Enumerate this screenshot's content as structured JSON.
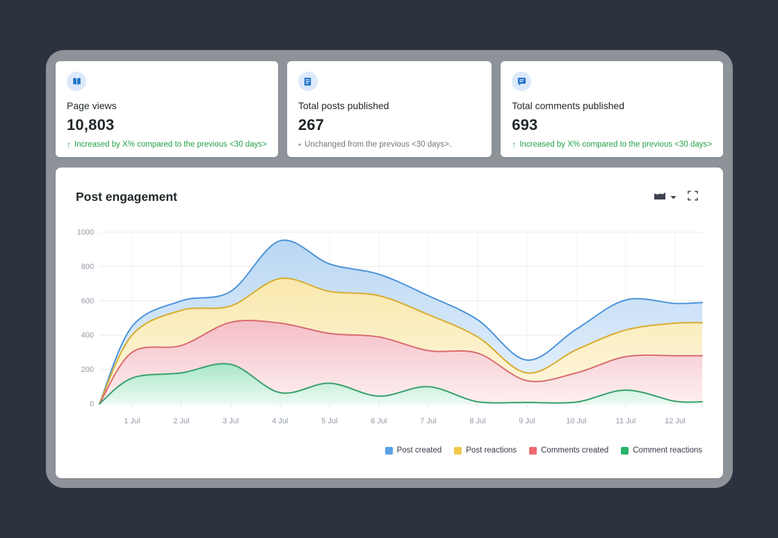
{
  "stat_cards": [
    {
      "icon": "book-icon",
      "title": "Page views",
      "value": "10,803",
      "trend": "up",
      "trend_glyph": "↑",
      "trend_text": "Increased by X% compared to the previous <30 days>"
    },
    {
      "icon": "document-icon",
      "title": "Total posts published",
      "value": "267",
      "trend": "neutral",
      "trend_glyph": "●",
      "trend_text": "Unchanged from the previous <30 days>."
    },
    {
      "icon": "chat-icon",
      "title": "Total comments published",
      "value": "693",
      "trend": "up",
      "trend_glyph": "↑",
      "trend_text": "Increased by X% compared to the previous <30 days>"
    }
  ],
  "chart": {
    "title": "Post engagement",
    "controls": {
      "type_selector_icon": "area-chart-icon",
      "type_selector_caret": "caret-down-icon",
      "expand_icon": "maximize-icon"
    }
  },
  "chart_data": {
    "type": "area",
    "stacked": false,
    "title": "Post engagement",
    "x_ticks": [
      "1 Jul",
      "2 Jul",
      "3 Jul",
      "4 Jul",
      "5 Jul",
      "6 Jul",
      "7 Jul",
      "8 Jul",
      "9 Jul",
      "10 Jul",
      "11 Jul",
      "12 Jul"
    ],
    "x": [
      0.34,
      1,
      2,
      3,
      4,
      5,
      6,
      7,
      8,
      9,
      10,
      11,
      12,
      12.55
    ],
    "ylim": [
      0,
      1000
    ],
    "y_ticks": [
      0,
      200,
      400,
      600,
      800,
      1000
    ],
    "grid": "horizontal",
    "legend_position": "bottom-right",
    "series": [
      {
        "name": "Post created",
        "stroke": "#4b93da",
        "swatch": "#57a1e5",
        "fill_top": "#b9d7f3",
        "fill_bottom": "#eaf3fc",
        "values": [
          0,
          450,
          600,
          655,
          950,
          815,
          755,
          630,
          490,
          255,
          435,
          605,
          585,
          590
        ]
      },
      {
        "name": "Post reactions",
        "stroke": "#d8ab2d",
        "swatch": "#f2c94c",
        "fill_top": "#fae8ac",
        "fill_bottom": "#fdf7e2",
        "values": [
          0,
          400,
          545,
          570,
          730,
          655,
          630,
          520,
          390,
          180,
          315,
          430,
          470,
          472
        ]
      },
      {
        "name": "Comments created",
        "stroke": "#d96a70",
        "swatch": "#ee6a6e",
        "fill_top": "#f5bec6",
        "fill_bottom": "#fdf0f1",
        "values": [
          0,
          300,
          340,
          475,
          470,
          410,
          390,
          310,
          295,
          135,
          180,
          275,
          280,
          280
        ]
      },
      {
        "name": "Comment reactions",
        "stroke": "#36a06b",
        "swatch": "#27b368",
        "fill_top": "#a9e6c6",
        "fill_bottom": "#ecfaf2",
        "values": [
          0,
          150,
          180,
          230,
          65,
          120,
          45,
          100,
          12,
          8,
          10,
          80,
          15,
          12
        ]
      }
    ]
  }
}
